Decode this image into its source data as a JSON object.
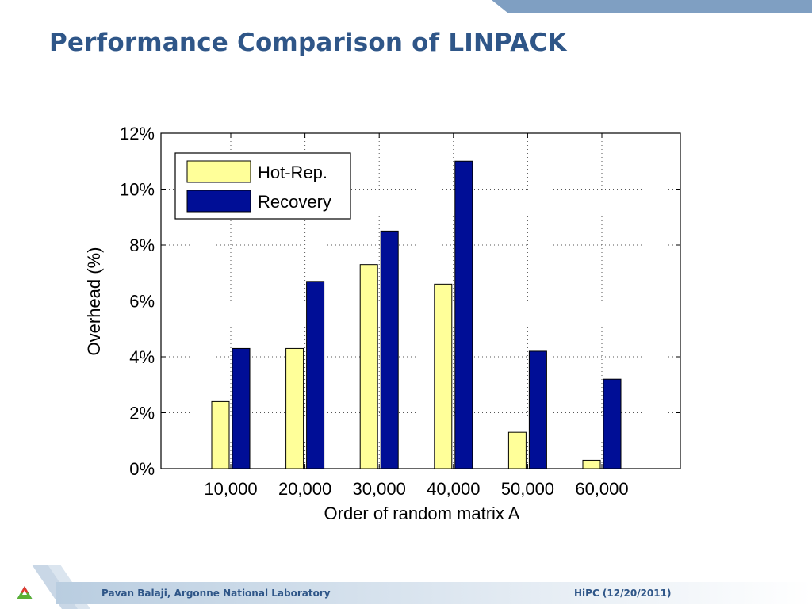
{
  "slide": {
    "title": "Performance Comparison of LINPACK",
    "footer_author": "Pavan Balaji, Argonne National Laboratory",
    "footer_event": "HiPC (12/20/2011)"
  },
  "colors": {
    "title": "#2f5688",
    "band": "#7f9fc2",
    "hot_rep": "#ffff99",
    "recovery": "#000e96"
  },
  "chart_data": {
    "type": "bar",
    "title": "",
    "xlabel": "Order of random matrix A",
    "ylabel": "Overhead (%)",
    "categories": [
      "10,000",
      "20,000",
      "30,000",
      "40,000",
      "50,000",
      "60,000"
    ],
    "series": [
      {
        "name": "Hot-Rep.",
        "values": [
          2.4,
          4.3,
          7.3,
          6.6,
          1.3,
          0.3
        ],
        "color": "#ffff99"
      },
      {
        "name": "Recovery",
        "values": [
          4.3,
          6.7,
          8.5,
          11.0,
          4.2,
          3.2
        ],
        "color": "#000e96"
      }
    ],
    "ylim": [
      0,
      12
    ],
    "yticks": [
      0,
      2,
      4,
      6,
      8,
      10,
      12
    ],
    "ytick_labels": [
      "0%",
      "2%",
      "4%",
      "6%",
      "8%",
      "10%",
      "12%"
    ],
    "grid": true,
    "legend_position": "top-left"
  }
}
